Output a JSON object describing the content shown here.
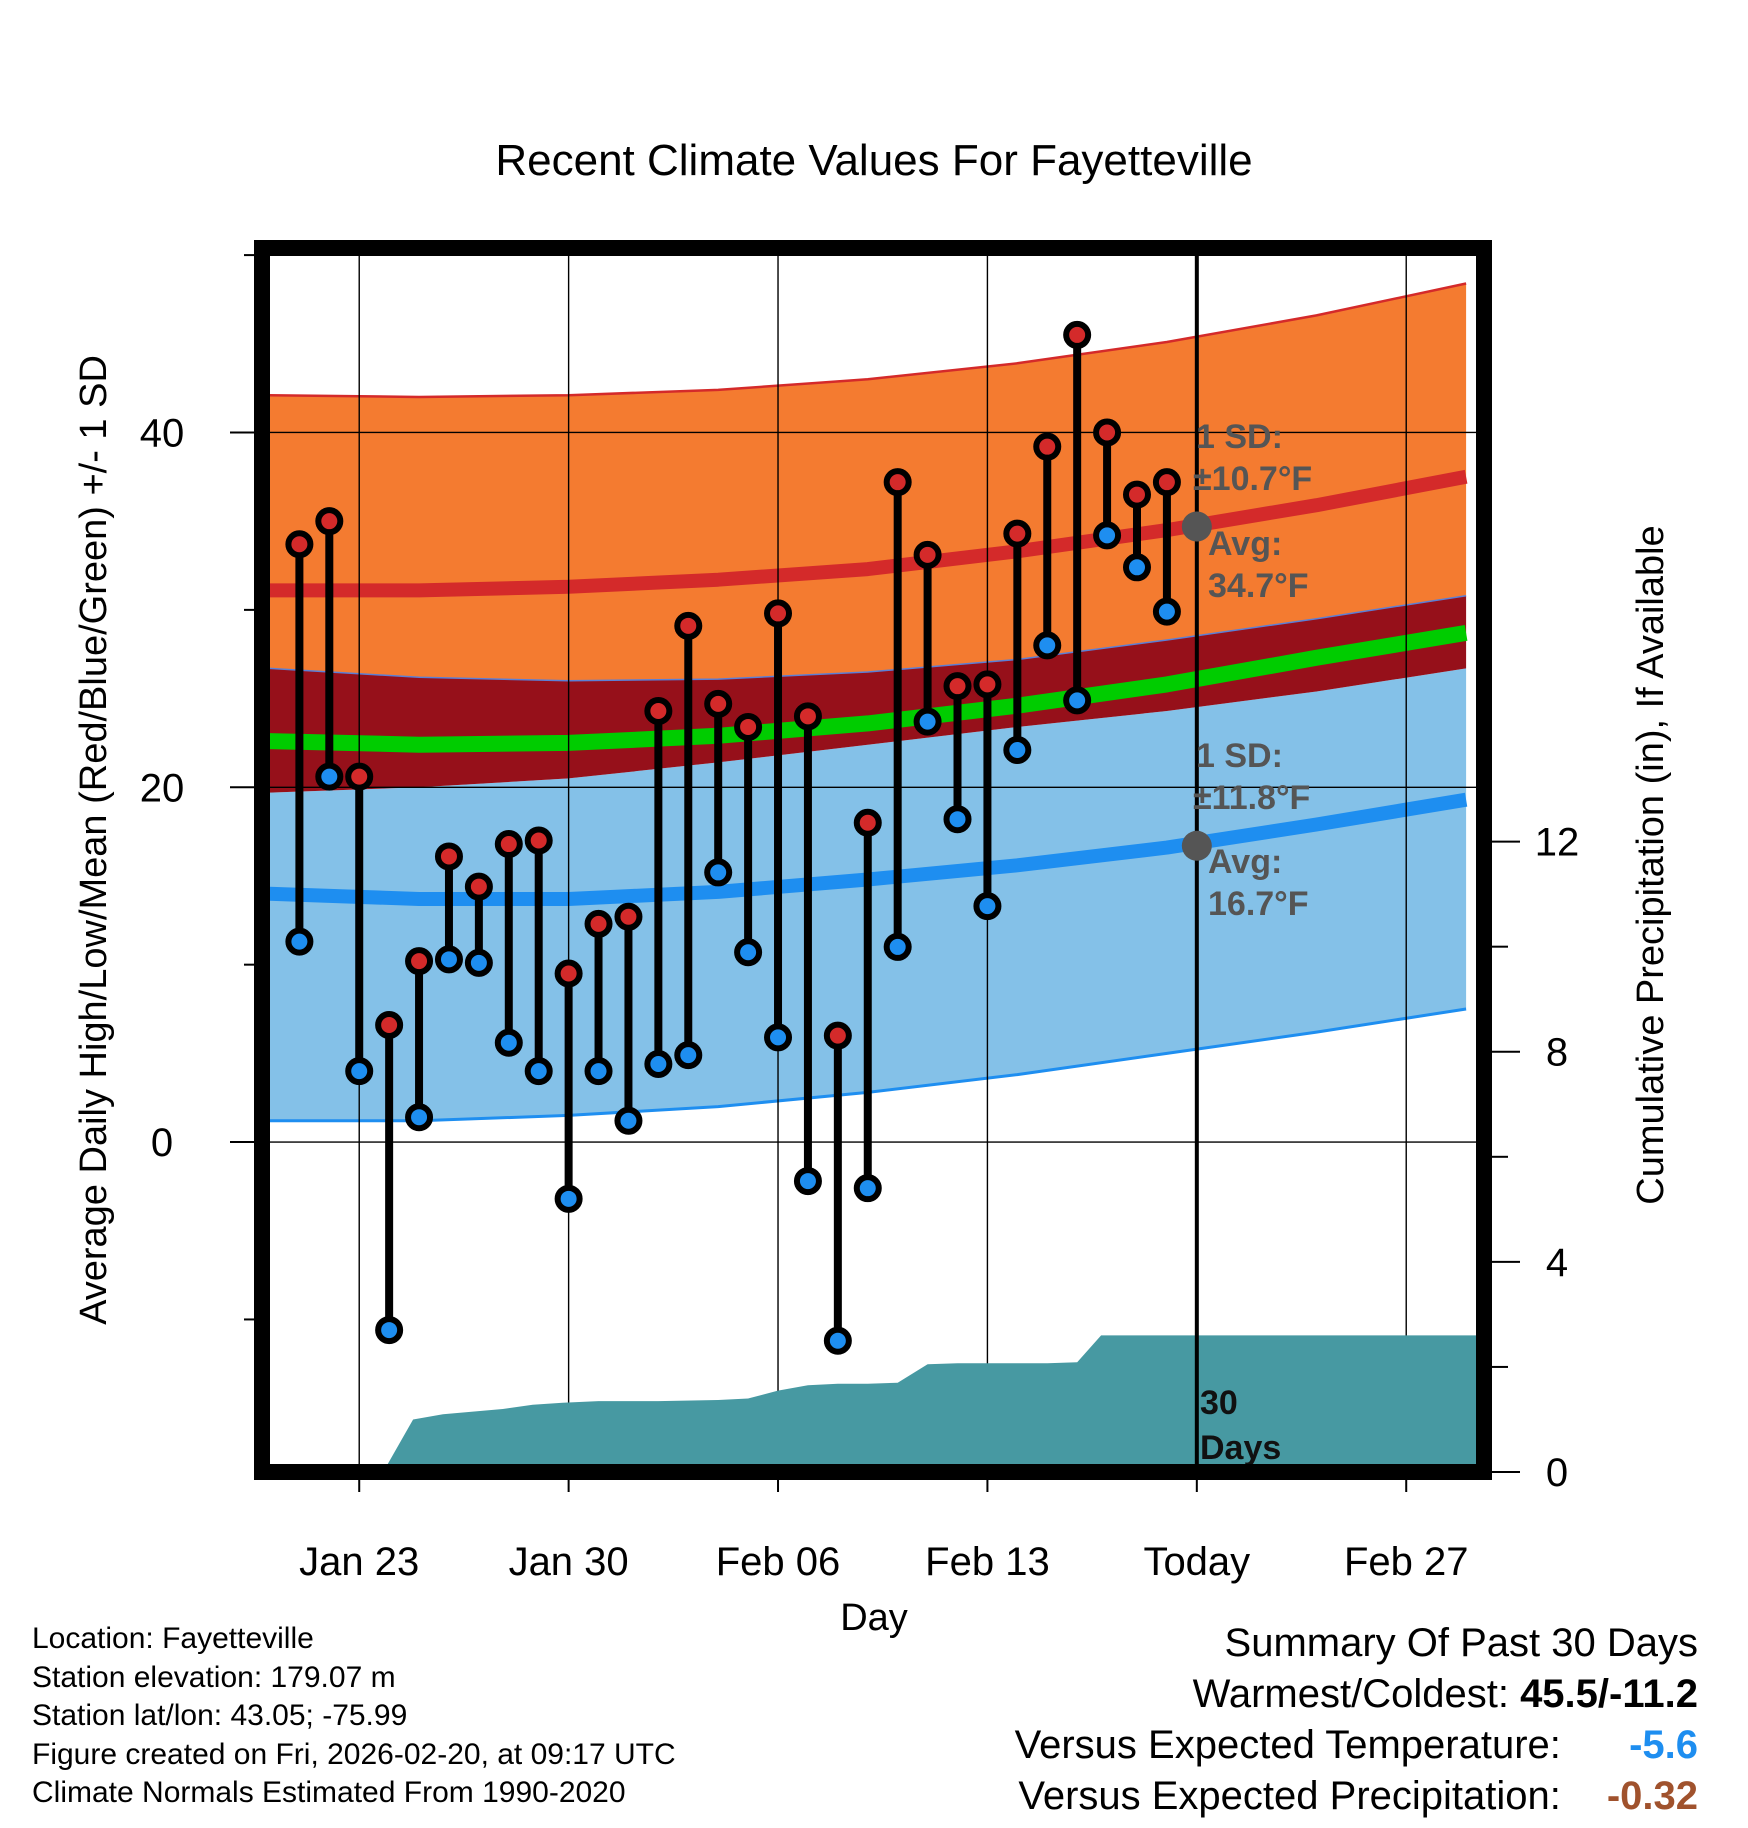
{
  "chart_data": {
    "type": "line",
    "title": "Recent Climate Values For Fayetteville",
    "xlabel": "Day",
    "ylabel_left": "Average Daily High/Low/Mean (Red/Blue/Green) +/- 1 SD",
    "ylabel_right": "Cumulative Precipitation (in), If Available",
    "x_ticks": [
      {
        "day": 3,
        "label": "Jan 23"
      },
      {
        "day": 10,
        "label": "Jan 30"
      },
      {
        "day": 17,
        "label": "Feb 06"
      },
      {
        "day": 24,
        "label": "Feb 13"
      },
      {
        "day": 31,
        "label": "Today"
      },
      {
        "day": 38,
        "label": "Feb 27"
      }
    ],
    "y_ticks_left": [
      0,
      20,
      40
    ],
    "y_ticks_right": [
      0,
      4,
      8,
      12
    ],
    "ylim_left": [
      -18.6,
      50.4
    ],
    "ylim_right": [
      0,
      23.3
    ],
    "xlim_days": [
      -0.25,
      40.6
    ],
    "today_day": 31,
    "today_label": "Today",
    "observed": {
      "day": [
        1,
        2,
        3,
        4,
        5,
        6,
        7,
        8,
        9,
        10,
        11,
        12,
        13,
        14,
        15,
        16,
        17,
        18,
        19,
        20,
        21,
        22,
        23,
        24,
        25,
        26,
        27,
        28,
        29,
        30
      ],
      "high": [
        33.7,
        35.0,
        20.6,
        6.6,
        10.2,
        16.1,
        14.4,
        16.8,
        17.0,
        9.5,
        12.3,
        12.7,
        24.3,
        29.1,
        24.7,
        23.4,
        29.8,
        24.0,
        6.0,
        18.0,
        37.2,
        33.1,
        25.7,
        25.8,
        34.3,
        39.2,
        45.5,
        40.0,
        36.5,
        37.2
      ],
      "low": [
        11.3,
        20.6,
        4.0,
        -10.6,
        1.4,
        10.3,
        10.1,
        5.6,
        4.0,
        -3.2,
        4.0,
        1.2,
        4.4,
        4.9,
        15.2,
        10.7,
        5.9,
        -2.2,
        -11.2,
        -2.6,
        11.0,
        23.7,
        18.2,
        13.3,
        22.1,
        28.0,
        24.9,
        34.2,
        32.4,
        29.9
      ]
    },
    "normals": {
      "day": [
        0,
        5,
        10,
        15,
        20,
        25,
        30,
        35,
        40
      ],
      "high_mean": [
        31.1,
        31.1,
        31.3,
        31.7,
        32.3,
        33.3,
        34.5,
        35.9,
        37.5
      ],
      "high_plus_sd": [
        42.1,
        42.0,
        42.1,
        42.4,
        43.0,
        43.9,
        45.1,
        46.6,
        48.4
      ],
      "high_minus_sd": [
        26.7,
        26.2,
        26.0,
        26.1,
        26.5,
        27.2,
        28.3,
        29.5,
        30.8
      ],
      "mean": [
        22.6,
        22.4,
        22.5,
        22.9,
        23.6,
        24.6,
        25.8,
        27.3,
        28.7
      ],
      "low_mean": [
        14.0,
        13.7,
        13.7,
        14.1,
        14.8,
        15.6,
        16.6,
        17.9,
        19.3
      ],
      "low_plus_sd": [
        19.7,
        20.0,
        20.5,
        21.4,
        22.4,
        23.4,
        24.3,
        25.4,
        26.7
      ],
      "low_minus_sd": [
        1.2,
        1.2,
        1.5,
        2.0,
        2.8,
        3.8,
        5.0,
        6.2,
        7.5
      ]
    },
    "precip_cumulative": {
      "day": [
        0,
        3.8,
        4.8,
        5.8,
        6.8,
        7.8,
        8.8,
        9.8,
        11,
        13,
        15,
        16,
        17,
        18,
        19,
        20,
        21,
        22,
        23,
        25,
        26,
        27,
        27.8,
        28.8,
        30,
        31,
        40.6
      ],
      "inches": [
        0,
        0,
        1.0,
        1.1,
        1.15,
        1.2,
        1.28,
        1.32,
        1.35,
        1.35,
        1.37,
        1.4,
        1.55,
        1.65,
        1.68,
        1.68,
        1.7,
        2.05,
        2.07,
        2.07,
        2.07,
        2.09,
        2.6,
        2.6,
        2.6,
        2.6,
        2.6
      ]
    },
    "annotations": {
      "high_sd": "1 SD:",
      "high_sd_value": "±10.7°F",
      "high_avg": "Avg:",
      "high_avg_value": "34.7°F",
      "low_sd": "1 SD:",
      "low_sd_value": "±11.8°F",
      "low_avg": "Avg:",
      "low_avg_value": "16.7°F",
      "today_high_avg": 34.7,
      "today_low_avg": 16.7,
      "days_count": "30",
      "days_word": "Days"
    },
    "colors": {
      "high_band": "#f47b30",
      "high_line": "#d42a2a",
      "mean_band": "#96101a",
      "mean_line": "#00cc00",
      "low_band": "#84c1e8",
      "low_line": "#1e8ef0",
      "precip": "#4799a2",
      "high_dot": "#d42a2a",
      "low_dot": "#1e8ef0",
      "annotation": "#555555"
    }
  },
  "info": {
    "location": "Location: Fayetteville",
    "elevation": "Station elevation: 179.07 m",
    "latlon": "Station lat/lon: 43.05; -75.99",
    "created": "Figure created on Fri, 2026-02-20, at 09:17 UTC",
    "normals": "Climate Normals Estimated From 1990-2020"
  },
  "summary": {
    "heading": "Summary Of Past 30 Days",
    "warmest_label": "Warmest/Coldest:",
    "warmest_value": "45.5/-11.2",
    "temp_label": "Versus Expected Temperature:",
    "temp_value": "-5.6",
    "temp_color": "#1e8ef0",
    "precip_label": "Versus Expected Precipitation:",
    "precip_value": "-0.32",
    "precip_color": "#a0522d"
  }
}
